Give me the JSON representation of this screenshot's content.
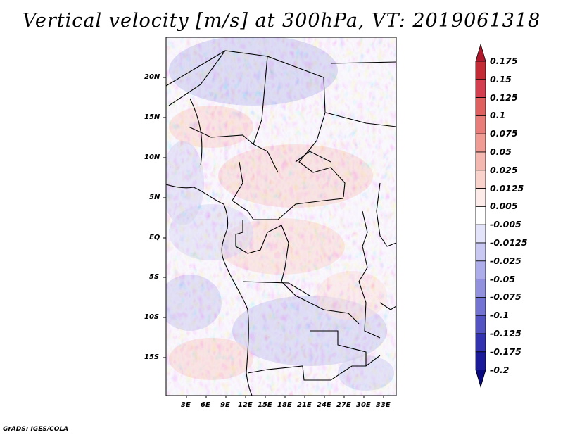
{
  "title": "Vertical velocity [m/s] at 300hPa, VT: 2019061318",
  "credit": "GrADS: IGES/COLA",
  "map": {
    "lon_range": [
      0,
      35
    ],
    "lat_range": [
      -20,
      25
    ],
    "x_ticks": [
      "3E",
      "6E",
      "9E",
      "12E",
      "15E",
      "18E",
      "21E",
      "24E",
      "27E",
      "30E",
      "33E"
    ],
    "y_ticks": [
      "20N",
      "15N",
      "10N",
      "5N",
      "EQ",
      "5S",
      "10S",
      "15S"
    ]
  },
  "colorbar": {
    "labels": [
      "0.175",
      "0.15",
      "0.125",
      "0.1",
      "0.075",
      "0.05",
      "0.025",
      "0.0125",
      "0.005",
      "-0.005",
      "-0.0125",
      "-0.025",
      "-0.05",
      "-0.075",
      "-0.1",
      "-0.125",
      "-0.175",
      "-0.2"
    ],
    "colors": [
      "#b2182b",
      "#c62a35",
      "#d53e4f",
      "#e0605f",
      "#e87d79",
      "#f09b94",
      "#f5b8b0",
      "#f9d2cc",
      "#fcebe8",
      "#ffffff",
      "#e3e3fa",
      "#c8c8f3",
      "#adadeb",
      "#9191e0",
      "#7373d3",
      "#5353c3",
      "#3333b1",
      "#1a1a9a",
      "#0a0a80"
    ]
  }
}
